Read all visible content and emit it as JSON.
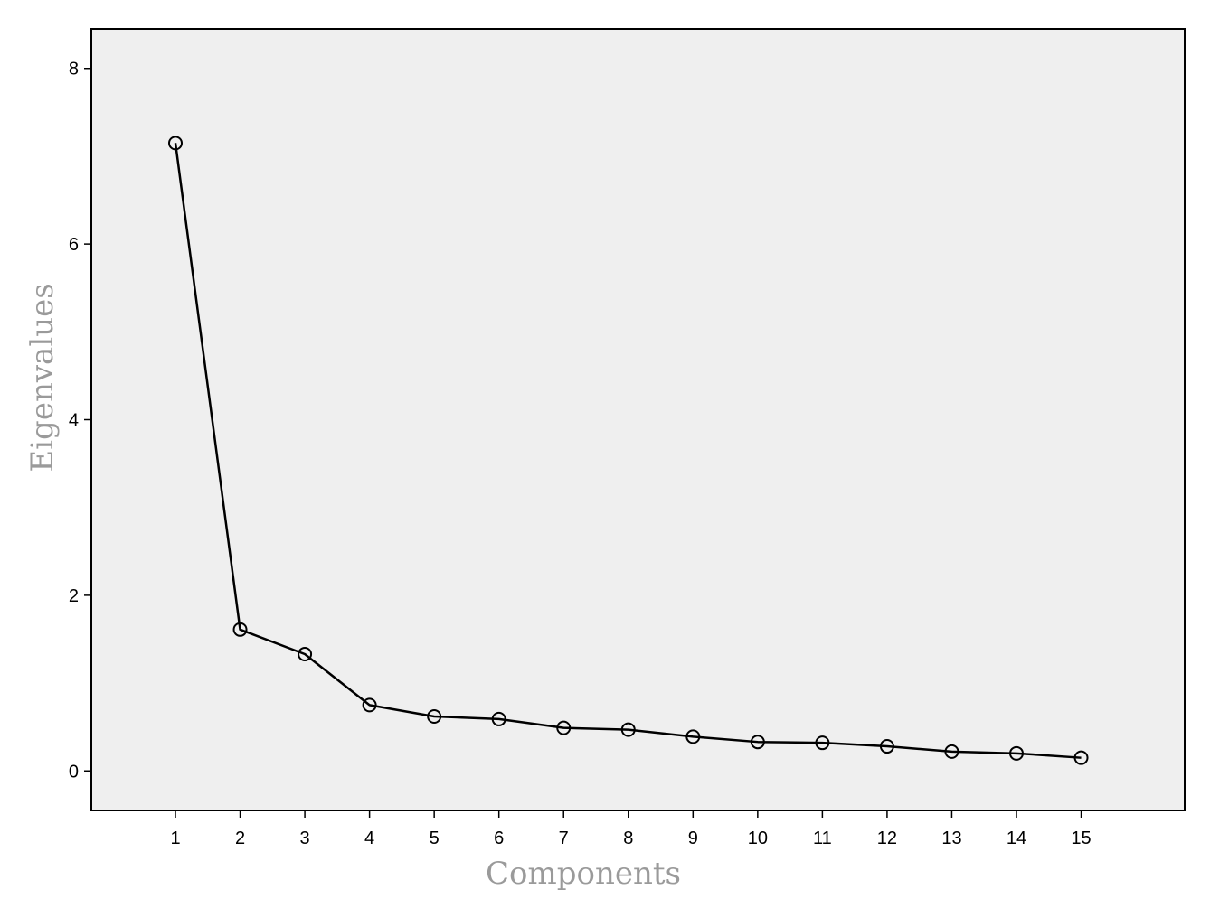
{
  "chart_data": {
    "type": "line",
    "title": "",
    "xlabel": "Components",
    "ylabel": "Eigenvalues",
    "x": [
      1,
      2,
      3,
      4,
      5,
      6,
      7,
      8,
      9,
      10,
      11,
      12,
      13,
      14,
      15
    ],
    "series": [
      {
        "values": [
          7.15,
          1.61,
          1.33,
          0.75,
          0.62,
          0.59,
          0.49,
          0.47,
          0.39,
          0.33,
          0.32,
          0.28,
          0.22,
          0.2,
          0.15
        ]
      }
    ],
    "xticks": [
      "1",
      "2",
      "3",
      "4",
      "5",
      "6",
      "7",
      "8",
      "9",
      "10",
      "11",
      "12",
      "13",
      "14",
      "15"
    ],
    "yticks": [
      "0",
      "2",
      "4",
      "6",
      "8"
    ],
    "ylim": [
      -0.45,
      8.45
    ],
    "xlim": [
      -0.3,
      16.6
    ],
    "grid": false,
    "marker": "open-circle",
    "colors": {
      "plot_background": "#efefef",
      "line": "#000000",
      "axis_title": "#9a9a9a"
    }
  }
}
